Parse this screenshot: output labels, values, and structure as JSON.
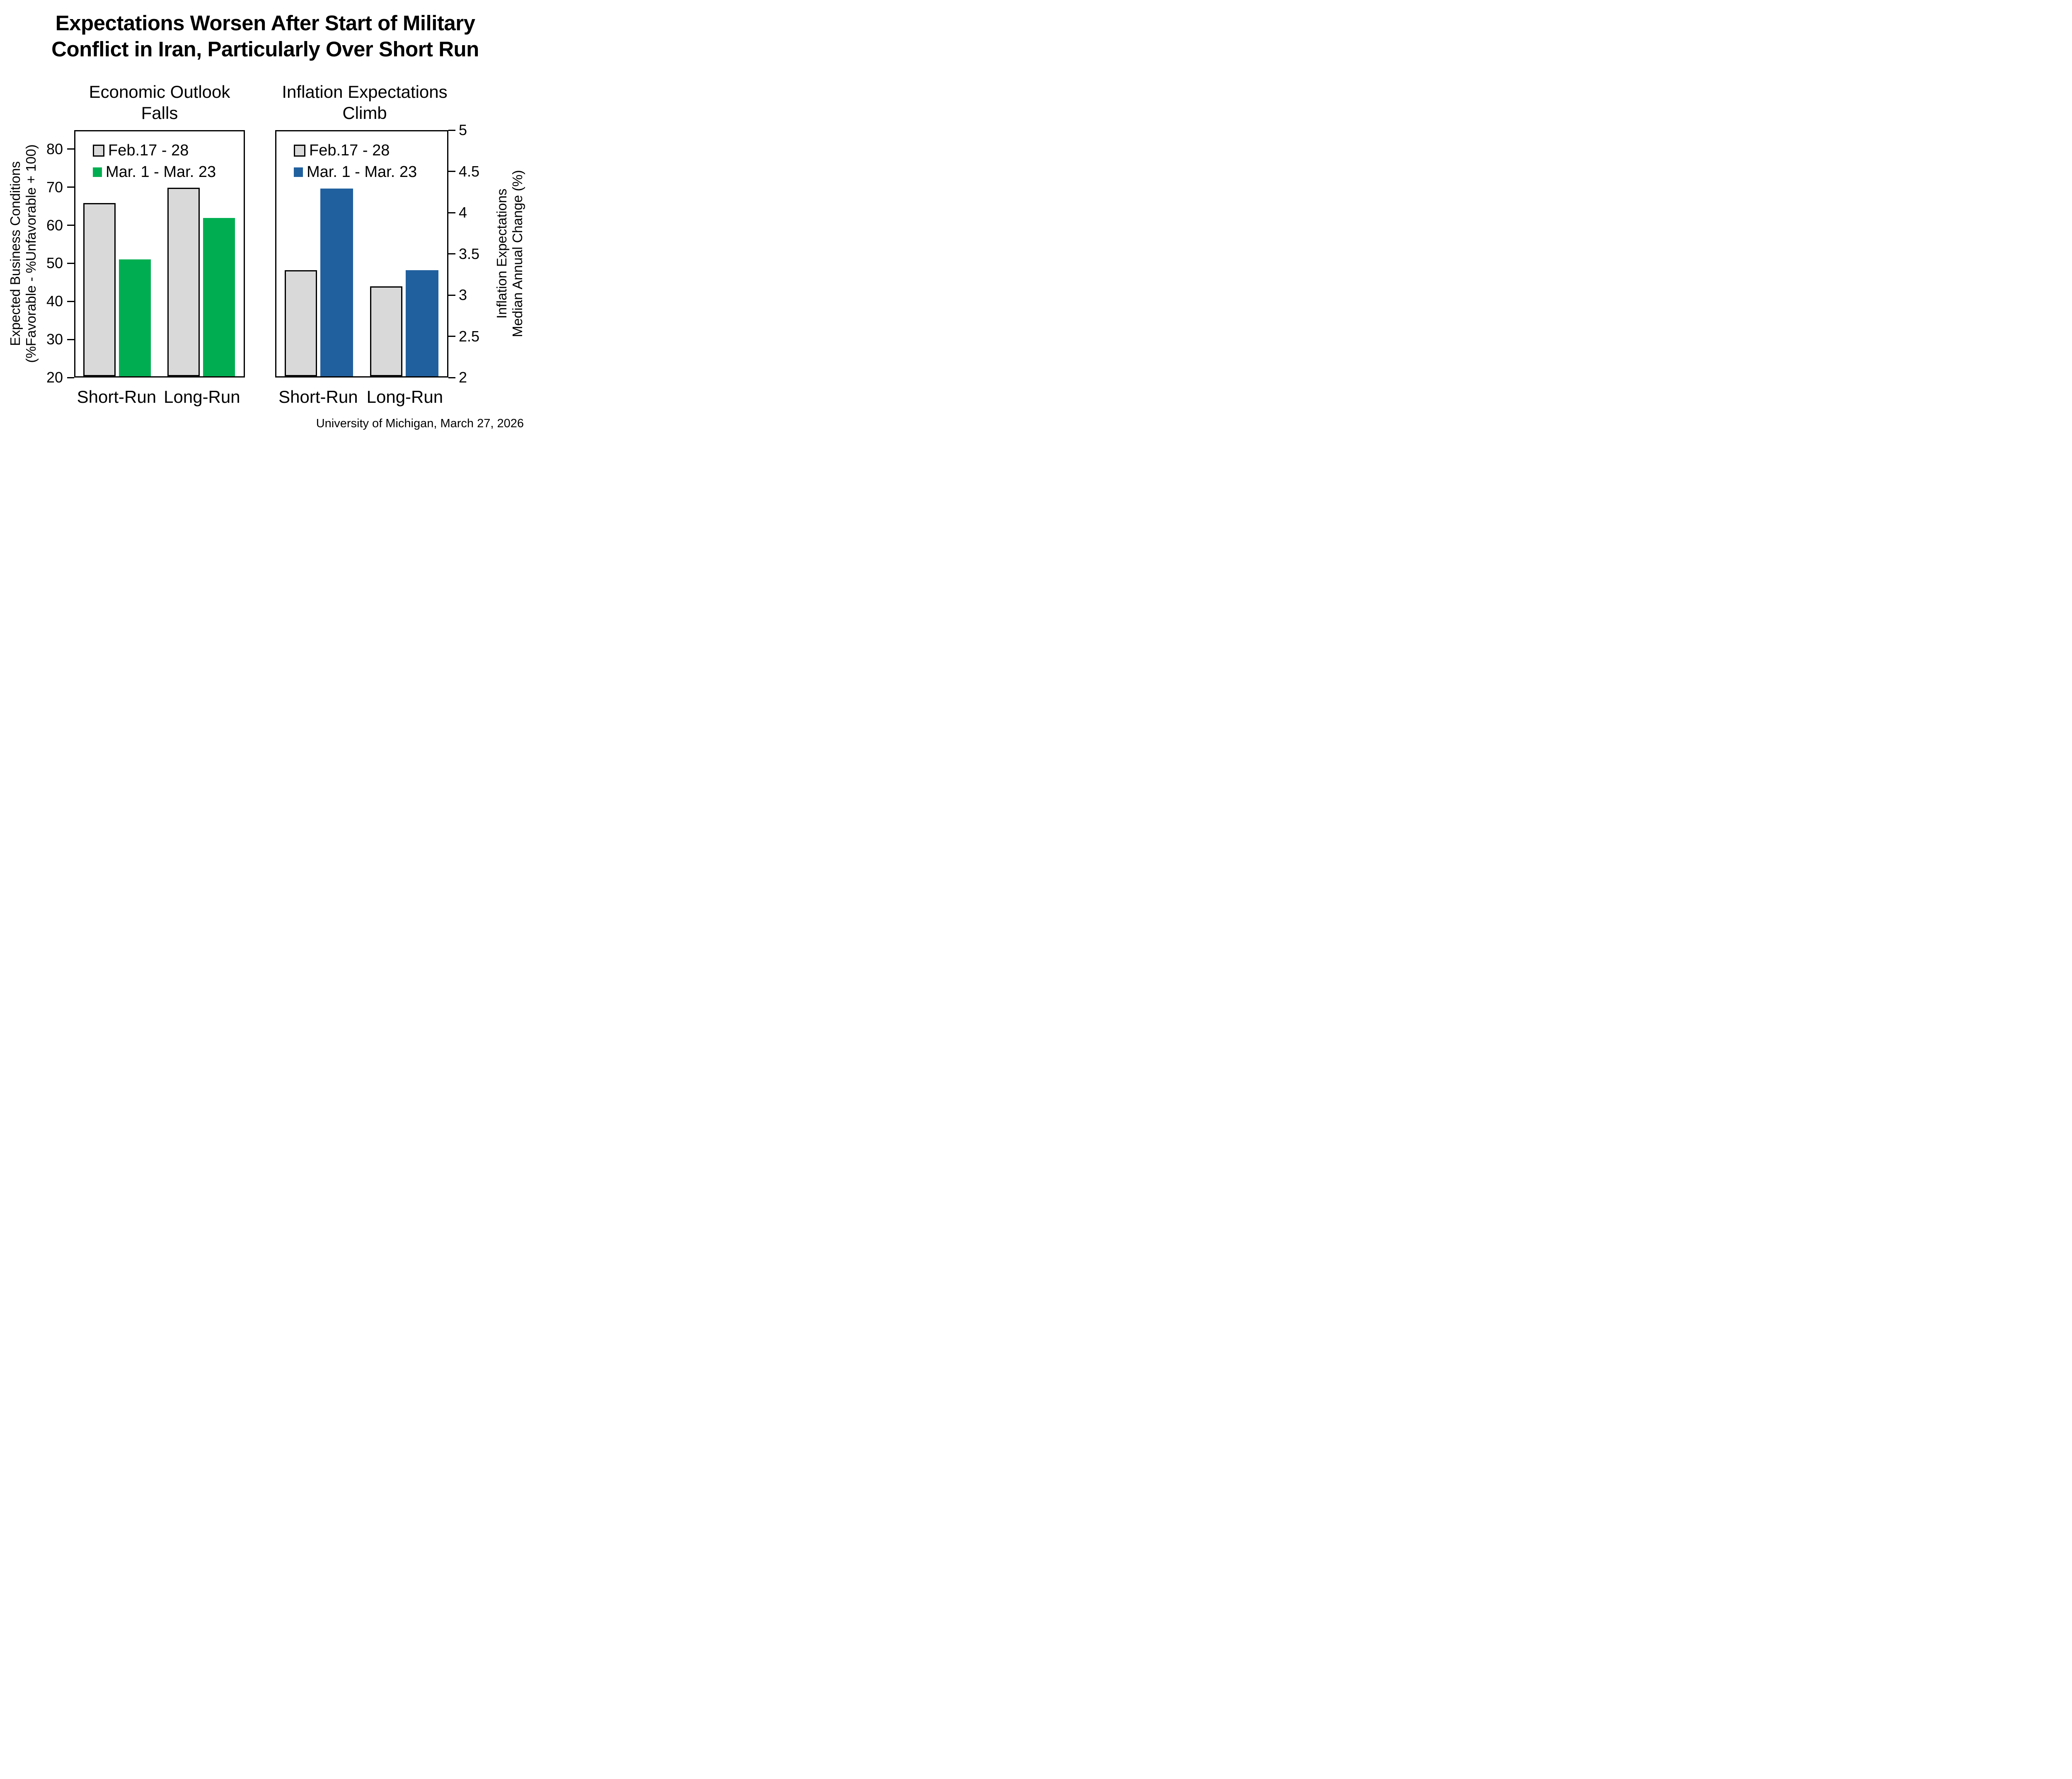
{
  "title": {
    "line1": "Expectations Worsen After Start of Military",
    "line2": "Conflict in Iran, Particularly Over Short Run"
  },
  "footer": "University of Michigan, March 27, 2026",
  "colors": {
    "bar_gray": "#D9D9D9",
    "bar_green": "#00AE51",
    "bar_blue": "#21609E",
    "axis": "#000000",
    "background": "#FFFFFF"
  },
  "chart_data": [
    {
      "type": "bar",
      "title": "Economic Outlook Falls",
      "title_lines": [
        "Economic Outlook",
        "Falls"
      ],
      "categories": [
        "Short-Run",
        "Long-Run"
      ],
      "series": [
        {
          "name": "Feb.17 - 28",
          "color": "#D9D9D9",
          "values": [
            66,
            70
          ]
        },
        {
          "name": "Mar. 1 - Mar. 23",
          "color": "#00AE51",
          "values": [
            51,
            62
          ]
        }
      ],
      "ylabel": "Expected Business Conditions (%Favorable - %Unfavorable + 100)",
      "ylabel_lines": [
        "Expected Business Conditions",
        "(%Favorable - %Unfavorable + 100)"
      ],
      "ylim": [
        20,
        85
      ],
      "yticks": [
        20,
        30,
        40,
        50,
        60,
        70,
        80
      ],
      "axis_side": "left",
      "legend_position": "top-left",
      "grid": false
    },
    {
      "type": "bar",
      "title": "Inflation Expectations Climb",
      "title_lines": [
        "Inflation Expectations",
        "Climb"
      ],
      "categories": [
        "Short-Run",
        "Long-Run"
      ],
      "series": [
        {
          "name": "Feb.17 - 28",
          "color": "#D9D9D9",
          "values": [
            3.3,
            3.1
          ]
        },
        {
          "name": "Mar. 1 - Mar. 23",
          "color": "#21609E",
          "values": [
            4.3,
            3.3
          ]
        }
      ],
      "ylabel": "Inflation Expectations Median Annual Change (%)",
      "ylabel_lines": [
        "Inflation Expectations",
        "Median Annual Change (%)"
      ],
      "ylim": [
        2,
        5
      ],
      "yticks": [
        2,
        2.5,
        3,
        3.5,
        4,
        4.5,
        5
      ],
      "axis_side": "right",
      "legend_position": "top-left",
      "grid": false
    }
  ]
}
